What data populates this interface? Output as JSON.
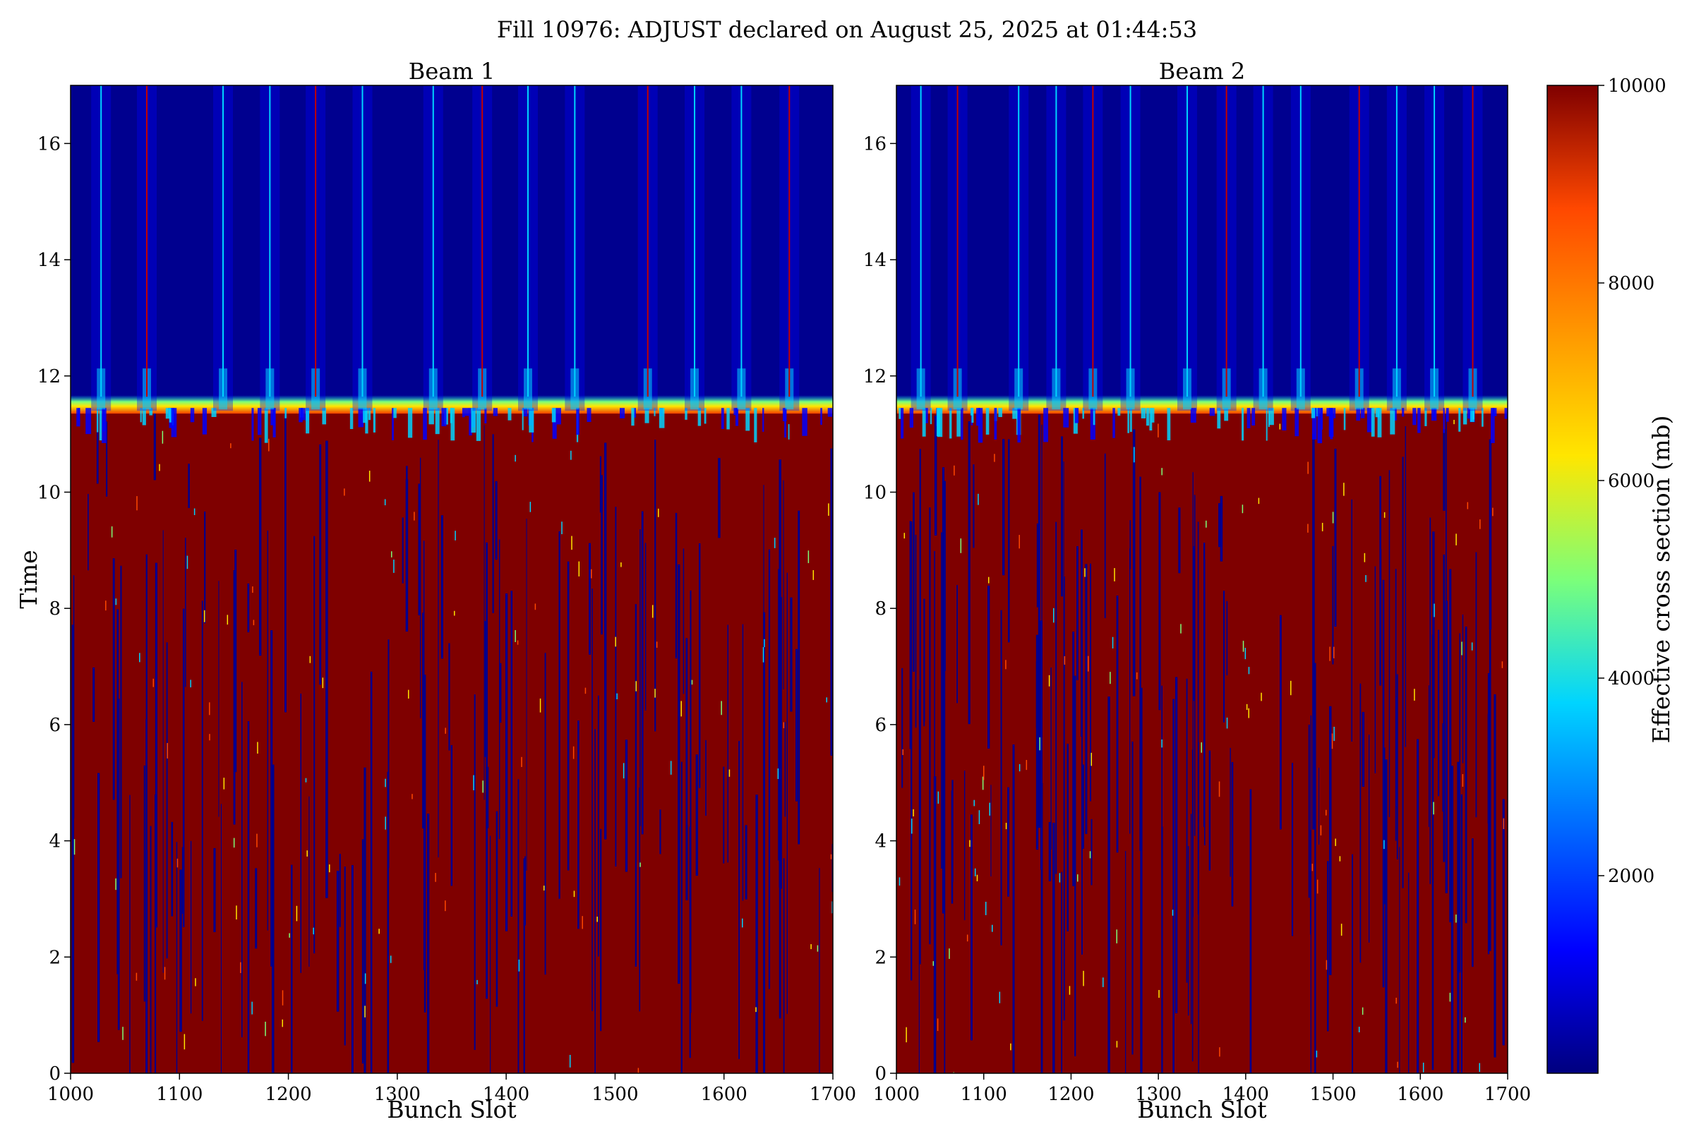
{
  "figure": {
    "suptitle": "Fill 10976: ADJUST declared on August 25, 2025 at 01:44:53"
  },
  "chart_data": [
    {
      "type": "heatmap",
      "title": "Beam 1",
      "xlabel": "Bunch Slot",
      "ylabel": "Time",
      "xlim": [
        1000,
        1700
      ],
      "ylim": [
        0,
        17
      ],
      "xticks": [
        "1000",
        "1100",
        "1200",
        "1300",
        "1400",
        "1500",
        "1600",
        "1700"
      ],
      "yticks": [
        "0",
        "2",
        "4",
        "6",
        "8",
        "10",
        "12",
        "14",
        "16"
      ],
      "regions": [
        {
          "time_range": [
            0,
            11.4
          ],
          "effective_cross_section_mb": 10000,
          "note": "saturated high value with sparse low-value streaks"
        },
        {
          "time_range": [
            11.4,
            17
          ],
          "effective_cross_section_mb": 0,
          "note": "low value with periodic bright streaks"
        }
      ],
      "transition_time": 11.4,
      "streak_bunch_slots": [
        1028,
        1070,
        1140,
        1183,
        1225,
        1268,
        1333,
        1378,
        1420,
        1463,
        1530,
        1573,
        1616,
        1660
      ]
    },
    {
      "type": "heatmap",
      "title": "Beam 2",
      "xlabel": "Bunch Slot",
      "ylabel": "",
      "xlim": [
        1000,
        1700
      ],
      "ylim": [
        0,
        17
      ],
      "xticks": [
        "1000",
        "1100",
        "1200",
        "1300",
        "1400",
        "1500",
        "1600",
        "1700"
      ],
      "yticks": [
        "0",
        "2",
        "4",
        "6",
        "8",
        "10",
        "12",
        "14",
        "16"
      ],
      "regions": [
        {
          "time_range": [
            0,
            11.4
          ],
          "effective_cross_section_mb": 10000,
          "note": "saturated high value with sparse low-value streaks"
        },
        {
          "time_range": [
            11.4,
            17
          ],
          "effective_cross_section_mb": 0,
          "note": "low value with periodic bright streaks"
        }
      ],
      "transition_time": 11.4,
      "streak_bunch_slots": [
        1028,
        1070,
        1140,
        1183,
        1225,
        1268,
        1333,
        1378,
        1420,
        1463,
        1530,
        1573,
        1616,
        1660
      ]
    }
  ],
  "colorbar": {
    "label": "Effective cross section (mb)",
    "range": [
      0,
      10000
    ],
    "ticks": [
      "2000",
      "4000",
      "6000",
      "8000",
      "10000"
    ],
    "colormap": [
      "#00007f",
      "#0000ff",
      "#00d4ff",
      "#7cff79",
      "#ffe600",
      "#ff4800",
      "#7f0000"
    ]
  },
  "colors": {
    "high": "#7f0000",
    "low": "#00008f",
    "streak": "#00d4ff"
  }
}
